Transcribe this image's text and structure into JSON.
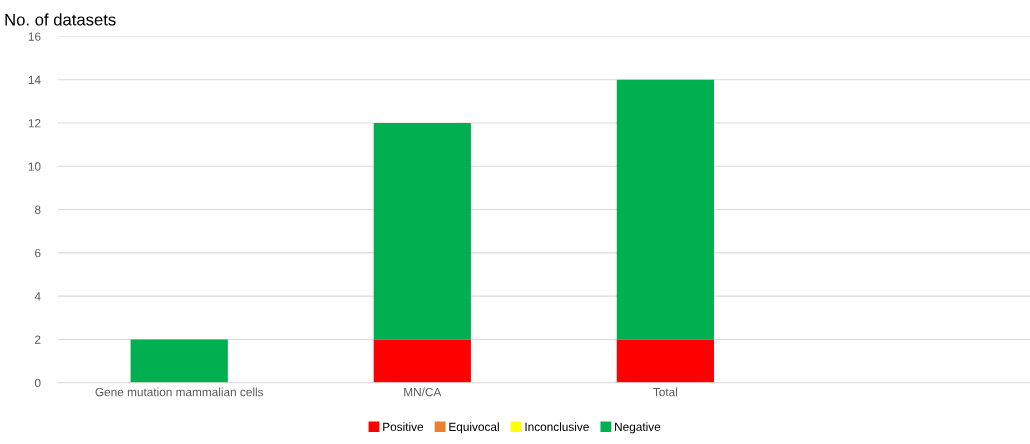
{
  "chart_data": {
    "type": "bar",
    "stacked": true,
    "ylabel": "No. of datasets",
    "categories": [
      "Gene mutation mammalian cells",
      "MN/CA",
      "Total",
      null
    ],
    "series": [
      {
        "name": "Positive",
        "color": "#ff0000",
        "values": [
          0,
          2,
          2,
          null
        ]
      },
      {
        "name": "Equivocal",
        "color": "#ed7d31",
        "values": [
          0,
          0,
          0,
          null
        ]
      },
      {
        "name": "Inconclusive",
        "color": "#ffff00",
        "values": [
          0,
          0,
          0,
          null
        ]
      },
      {
        "name": "Negative",
        "color": "#00b050",
        "values": [
          2,
          10,
          12,
          null
        ]
      }
    ],
    "ylim": [
      0,
      16
    ],
    "yticks": [
      0,
      2,
      4,
      6,
      8,
      10,
      12,
      14,
      16
    ],
    "grid": "y",
    "legend": "bottom"
  }
}
